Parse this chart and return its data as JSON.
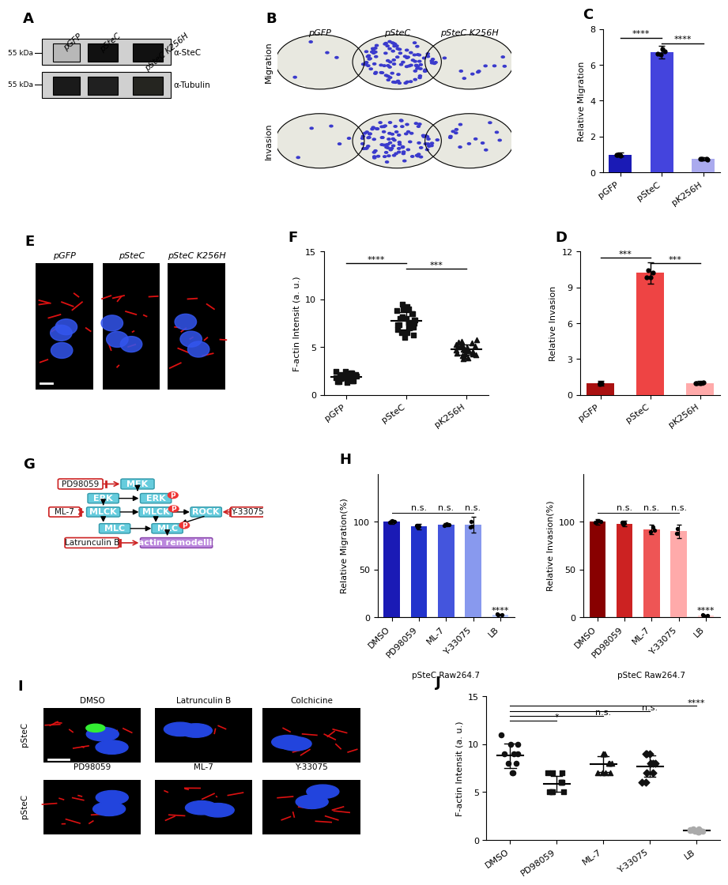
{
  "panel_C": {
    "categories": [
      "pGFP",
      "pSteC",
      "pK256H"
    ],
    "values": [
      1.0,
      6.7,
      0.75
    ],
    "errors": [
      0.12,
      0.35,
      0.1
    ],
    "colors": [
      "#1a1ab5",
      "#4444dd",
      "#aaaaee"
    ],
    "ylabel": "Relative Migration",
    "ylim": [
      0,
      8
    ],
    "yticks": [
      0,
      2,
      4,
      6,
      8
    ]
  },
  "panel_D": {
    "categories": [
      "pGFP",
      "pSteC",
      "pK256H"
    ],
    "values": [
      1.0,
      10.2,
      1.0
    ],
    "errors": [
      0.2,
      0.9,
      0.15
    ],
    "colors": [
      "#aa1111",
      "#ee4444",
      "#ffaaaa"
    ],
    "ylabel": "Relative Invasion",
    "ylim": [
      0,
      12
    ],
    "yticks": [
      0,
      3,
      6,
      9,
      12
    ]
  },
  "panel_F": {
    "groups": [
      "pGFP",
      "pSteC",
      "pK256H"
    ],
    "pGFP_y": [
      1.5,
      1.8,
      2.0,
      2.2,
      1.9,
      1.7,
      2.1,
      2.3,
      1.6,
      1.4,
      1.8,
      2.0,
      2.5,
      1.3,
      1.5,
      2.2,
      1.7,
      1.9,
      2.1,
      2.3,
      1.6,
      1.4,
      1.8,
      2.0,
      2.5
    ],
    "pSteC_y": [
      6.0,
      7.5,
      8.0,
      7.0,
      9.0,
      8.5,
      6.5,
      7.8,
      8.2,
      7.3,
      9.5,
      6.8,
      7.1,
      8.8,
      7.6,
      9.2,
      6.3,
      8.0,
      7.5,
      9.0,
      8.5,
      6.5,
      7.8,
      8.2,
      7.3
    ],
    "pK256H_y": [
      4.0,
      5.0,
      4.5,
      5.5,
      3.8,
      4.2,
      5.8,
      4.7,
      4.3,
      5.2,
      4.6,
      5.1,
      4.9,
      3.9,
      5.3,
      4.8,
      4.4,
      5.6,
      4.1,
      5.4,
      4.7,
      4.3,
      5.2,
      4.6,
      5.1
    ],
    "ylabel": "F-actin Intensit (a. u.)",
    "ylim": [
      0,
      15
    ],
    "yticks": [
      0,
      5,
      10,
      15
    ]
  },
  "panel_H_migration": {
    "categories": [
      "DMSO",
      "PD98059",
      "ML-7",
      "Y-33075",
      "LB"
    ],
    "values": [
      100,
      95,
      97,
      97,
      3
    ],
    "errors": [
      2,
      3,
      2,
      8,
      1
    ],
    "colors": [
      "#1a1ab5",
      "#2233cc",
      "#4455dd",
      "#8899ee",
      "#bbccff"
    ],
    "ylabel": "Relative Migration(%)",
    "ylim": [
      0,
      150
    ],
    "yticks": [
      0,
      50,
      100
    ],
    "sig_labels": [
      "n.s.",
      "n.s.",
      "n.s.",
      "****"
    ],
    "xlabel": "pSteC Raw264.7"
  },
  "panel_H_invasion": {
    "categories": [
      "DMSO",
      "PD98059",
      "ML-7",
      "Y-33075",
      "LB"
    ],
    "values": [
      100,
      98,
      92,
      90,
      2
    ],
    "errors": [
      3,
      3,
      5,
      7,
      1
    ],
    "colors": [
      "#880000",
      "#cc2222",
      "#ee5555",
      "#ffaaaa",
      "#ffcccc"
    ],
    "ylabel": "Relative Invasion(%)",
    "ylim": [
      0,
      150
    ],
    "yticks": [
      0,
      50,
      100
    ],
    "sig_labels": [
      "n.s.",
      "n.s.",
      "n.s.",
      "****"
    ],
    "xlabel": "pSteC Raw264.7"
  },
  "panel_J": {
    "groups": [
      "DMSO",
      "PD98059",
      "ML-7",
      "Y-33075",
      "LB"
    ],
    "DMSO_y": [
      7,
      9,
      10,
      8,
      11,
      9,
      8,
      10,
      7,
      9
    ],
    "PD98059_y": [
      5,
      6,
      7,
      5,
      6,
      7,
      5,
      6,
      5,
      7
    ],
    "ML7_y": [
      7,
      8,
      9,
      7,
      8,
      9,
      7,
      8,
      7,
      9
    ],
    "Y33075_y": [
      7,
      8,
      9,
      6,
      8,
      9,
      7,
      8,
      6,
      9
    ],
    "LB_y": [
      0.8,
      1.0,
      1.2,
      0.9,
      1.1,
      0.8,
      1.0,
      1.2,
      0.9,
      1.1
    ],
    "ylabel": "F-actin Intensit (a. u.)",
    "ylim": [
      0,
      15
    ],
    "yticks": [
      0,
      5,
      10,
      15
    ],
    "sig_labels": [
      "*",
      "n.s.",
      "n.s.",
      "****"
    ]
  }
}
